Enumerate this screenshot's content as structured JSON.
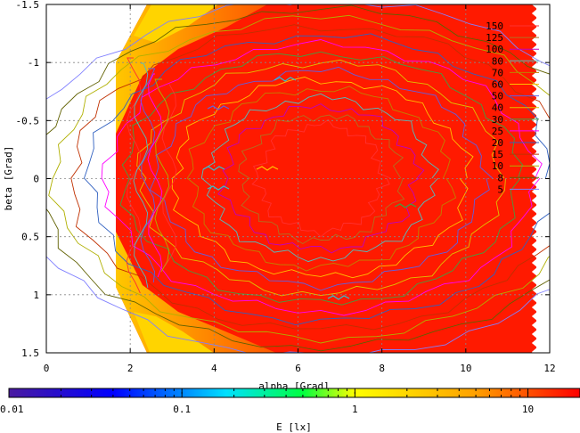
{
  "chart_data": {
    "type": "heatmap",
    "subtype": "contour-filled",
    "xlabel": "alpha [Grad]",
    "ylabel": "beta [Grad]",
    "xlim": [
      0,
      12
    ],
    "ylim": [
      1.5,
      -1.5
    ],
    "y_axis_reversed": true,
    "xticks": [
      "0",
      "2",
      "4",
      "6",
      "8",
      "10",
      "12"
    ],
    "yticks": [
      "-1.5",
      "-1",
      "-0.5",
      "0",
      "0.5",
      "1",
      "1.5"
    ],
    "grid": true,
    "data_extent": {
      "x": [
        1.65,
        11.7
      ],
      "y": [
        -1.5,
        1.5
      ]
    },
    "contour_levels": [
      150,
      125,
      100,
      80,
      70,
      60,
      50,
      40,
      30,
      25,
      20,
      15,
      10,
      8,
      5
    ],
    "contour_legend_labels": [
      "150",
      "125",
      "100",
      "80",
      "70",
      "60",
      "50",
      "40",
      "30",
      "25",
      "20",
      "15",
      "10",
      "8",
      "5"
    ],
    "contour_colors": [
      "#ff3030",
      "#b07020",
      "#c000c0",
      "#50c0c0",
      "#c08000",
      "#ffc000",
      "#6060e0",
      "#e0c000",
      "#40a040",
      "#ff00ff",
      "#3060c0",
      "#c03000",
      "#b0b000",
      "#606000",
      "#8080ff"
    ],
    "legend_position": "top-right",
    "colorbar": {
      "label": "E [lx]",
      "scale": "log",
      "range": [
        0.01,
        20
      ],
      "ticks": [
        "0.01",
        "0.1",
        "1",
        "10"
      ],
      "tick_values": [
        0.01,
        0.1,
        1,
        10
      ],
      "colors": [
        "#4a1aa0",
        "#0000ff",
        "#00e0ff",
        "#00ff40",
        "#ffff00",
        "#ffa000",
        "#ff0000"
      ],
      "color_stops": [
        0.01,
        0.04,
        0.18,
        0.5,
        1.0,
        5,
        20
      ]
    },
    "field_notes": "Dominant value ~ 12 lx (red) across most of the region; lower values (3-8 lx, orange/yellow) near left corners alpha 2-3.5, |beta| 1-1.5."
  }
}
